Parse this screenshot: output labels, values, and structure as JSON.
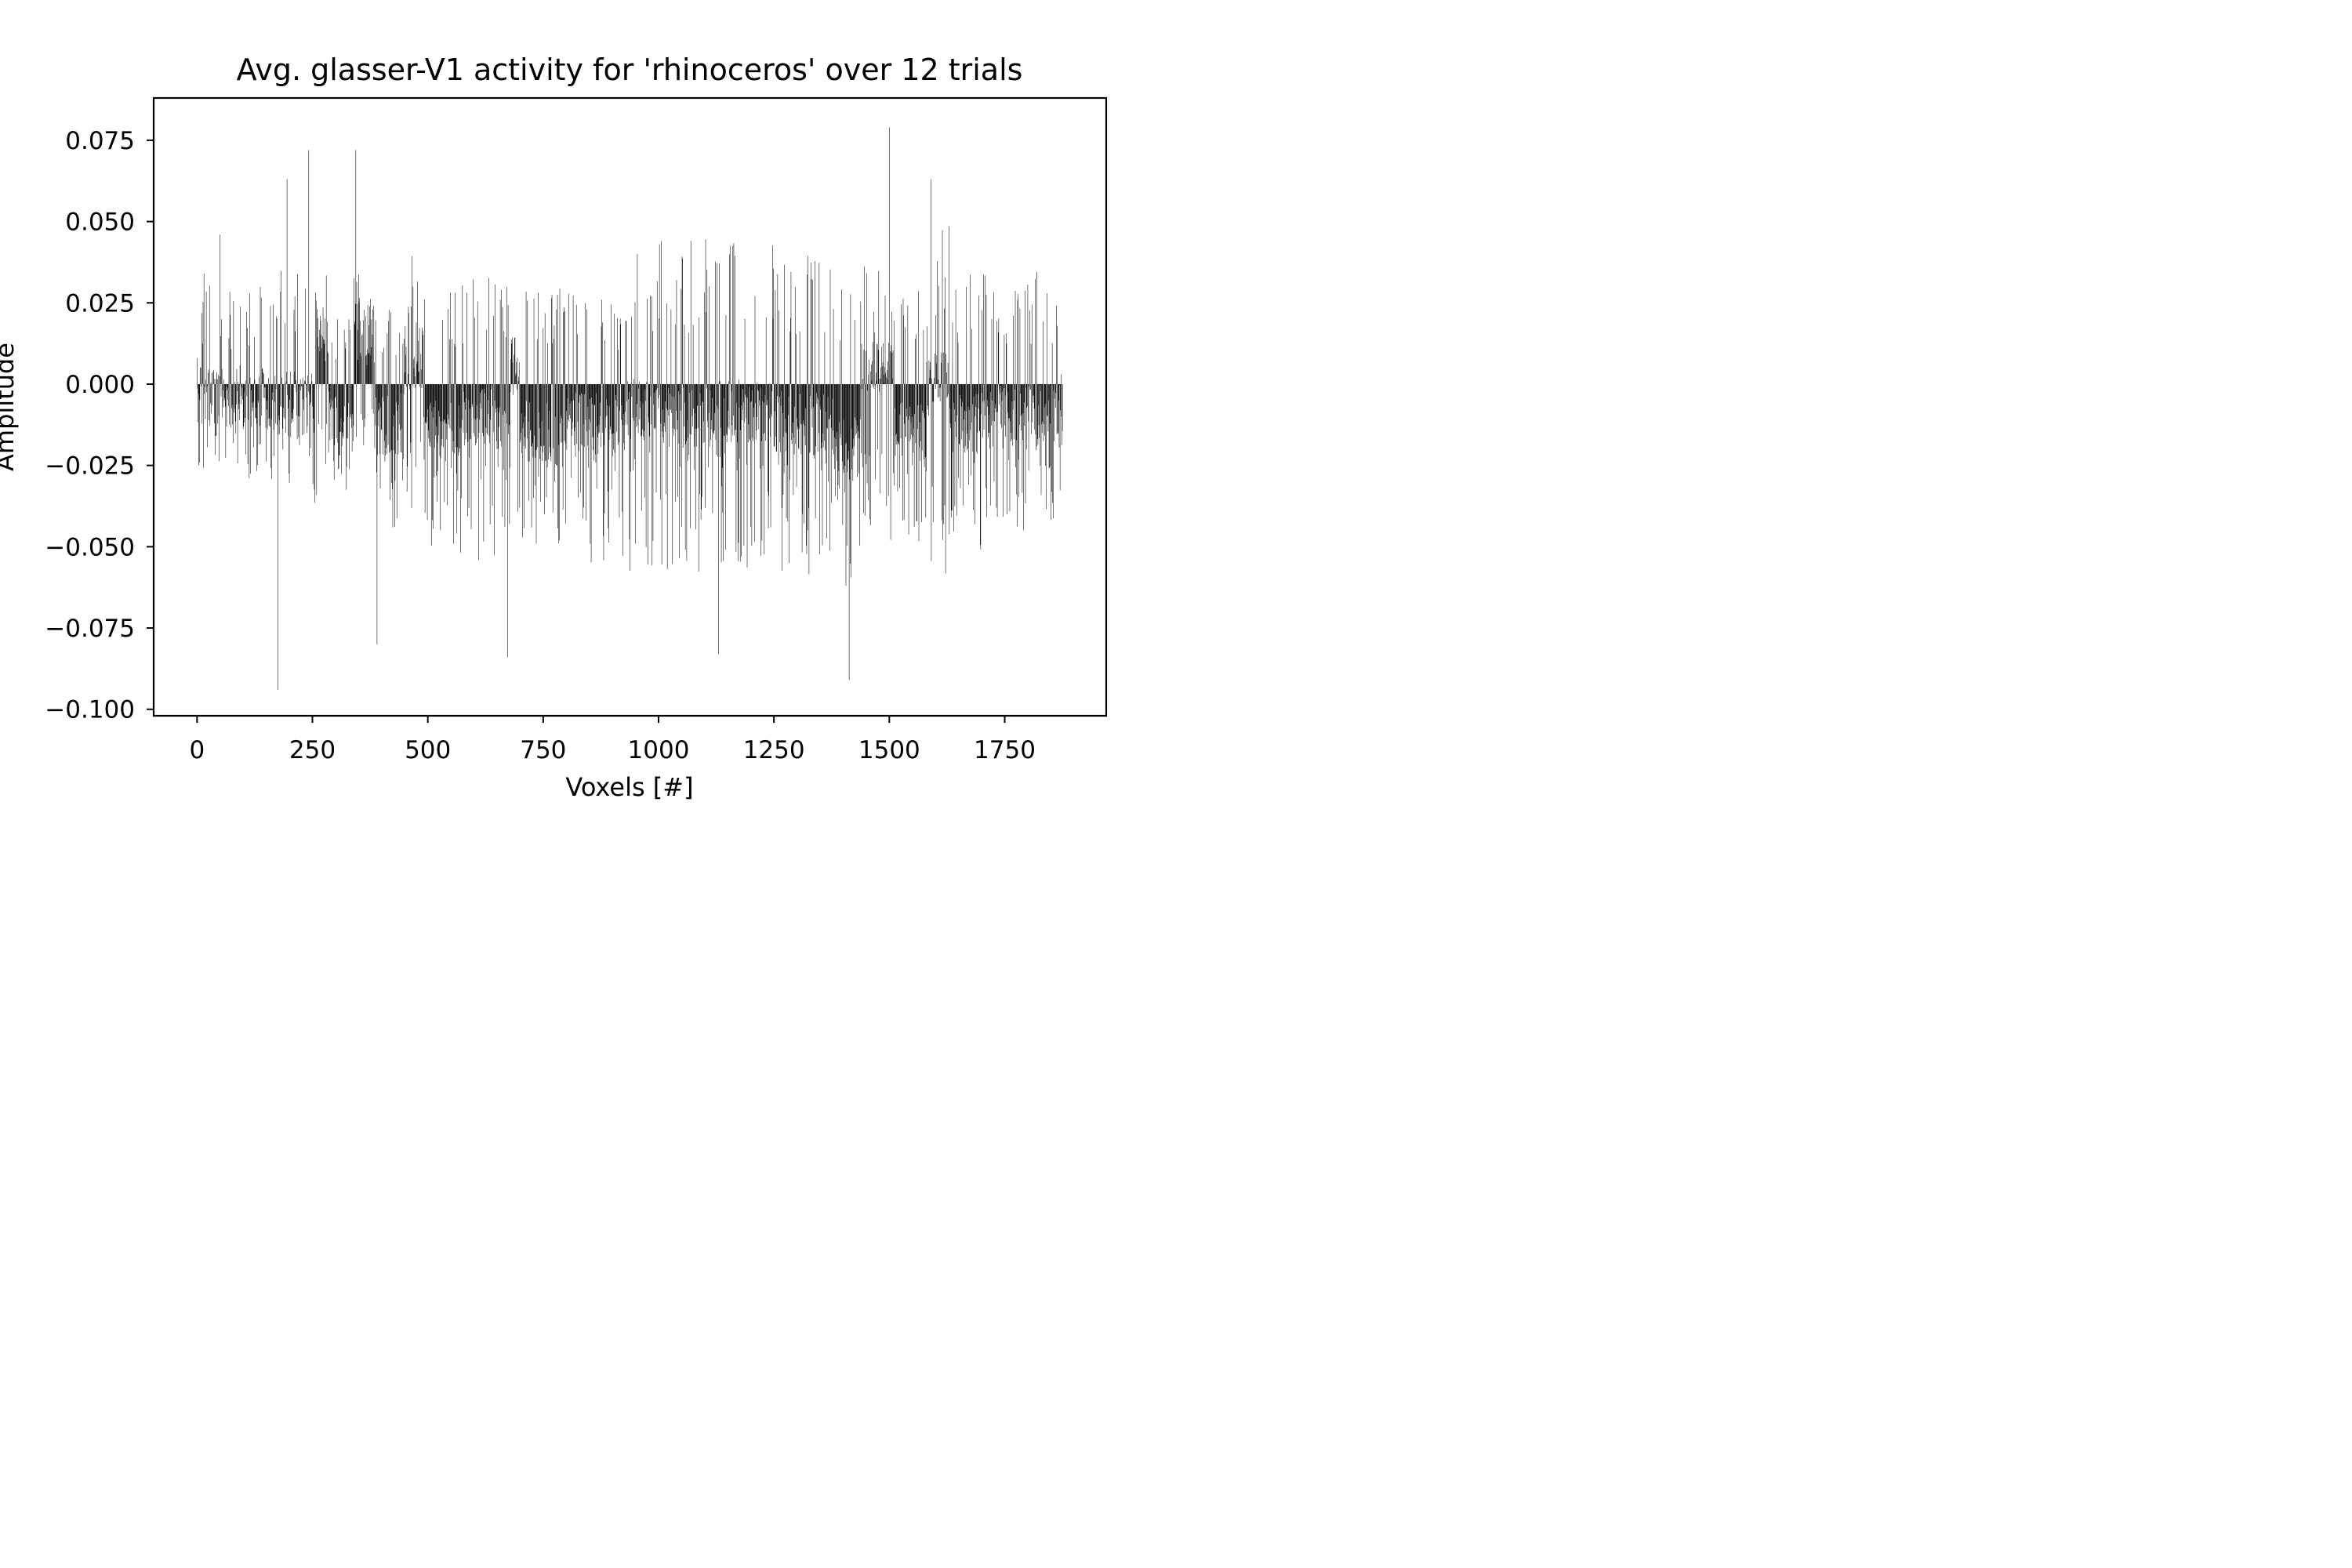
{
  "chart_data": {
    "type": "bar",
    "title": "Avg. glasser-V1 activity for 'rhinoceros' over 12 trials",
    "xlabel": "Voxels [#]",
    "ylabel": "Amplitude",
    "n_points": 1876,
    "xlim": [
      -94,
      1970
    ],
    "ylim": [
      -0.102,
      0.088
    ],
    "x_ticks": [
      0,
      250,
      500,
      750,
      1000,
      1250,
      1500,
      1750
    ],
    "x_tick_labels": [
      "0",
      "250",
      "500",
      "750",
      "1000",
      "1250",
      "1500",
      "1750"
    ],
    "y_ticks": [
      0.075,
      0.05,
      0.025,
      0.0,
      -0.025,
      -0.05,
      -0.075,
      -0.1
    ],
    "y_tick_labels": [
      "0.075",
      "0.050",
      "0.025",
      "0.000",
      "−0.025",
      "−0.050",
      "−0.075",
      "−0.100"
    ],
    "grid": false,
    "bar_color": "#000000",
    "notable_values": [
      {
        "x": 0,
        "y": 0.008
      },
      {
        "x": 50,
        "y": 0.046
      },
      {
        "x": 175,
        "y": -0.094
      },
      {
        "x": 195,
        "y": 0.063
      },
      {
        "x": 242,
        "y": 0.072
      },
      {
        "x": 344,
        "y": 0.072
      },
      {
        "x": 390,
        "y": -0.08
      },
      {
        "x": 673,
        "y": -0.084
      },
      {
        "x": 1130,
        "y": -0.083
      },
      {
        "x": 1413,
        "y": -0.091
      },
      {
        "x": 1500,
        "y": 0.079
      },
      {
        "x": 1590,
        "y": 0.063
      },
      {
        "x": 1872,
        "y": 0.003
      }
    ],
    "segments": [
      {
        "x": [
          0,
          60
        ],
        "mean": -0.004,
        "pos": 0.035,
        "neg": 0.03
      },
      {
        "x": [
          60,
          170
        ],
        "mean": -0.004,
        "pos": 0.03,
        "neg": 0.03
      },
      {
        "x": [
          170,
          260
        ],
        "mean": -0.006,
        "pos": 0.035,
        "neg": 0.04
      },
      {
        "x": [
          260,
          285
        ],
        "mean": 0.012,
        "pos": 0.035,
        "neg": 0.03
      },
      {
        "x": [
          285,
          340
        ],
        "mean": -0.012,
        "pos": 0.02,
        "neg": 0.035
      },
      {
        "x": [
          340,
          385
        ],
        "mean": 0.015,
        "pos": 0.04,
        "neg": 0.02
      },
      {
        "x": [
          385,
          450
        ],
        "mean": -0.012,
        "pos": 0.025,
        "neg": 0.045
      },
      {
        "x": [
          450,
          490
        ],
        "mean": 0.008,
        "pos": 0.045,
        "neg": 0.04
      },
      {
        "x": [
          490,
          570
        ],
        "mean": -0.014,
        "pos": 0.03,
        "neg": 0.05
      },
      {
        "x": [
          570,
          680
        ],
        "mean": -0.01,
        "pos": 0.035,
        "neg": 0.055
      },
      {
        "x": [
          680,
          700
        ],
        "mean": 0.005,
        "pos": 0.035,
        "neg": 0.04
      },
      {
        "x": [
          700,
          800
        ],
        "mean": -0.014,
        "pos": 0.03,
        "neg": 0.05
      },
      {
        "x": [
          800,
          930
        ],
        "mean": -0.012,
        "pos": 0.03,
        "neg": 0.055
      },
      {
        "x": [
          930,
          1010
        ],
        "mean": -0.008,
        "pos": 0.045,
        "neg": 0.06
      },
      {
        "x": [
          1010,
          1130
        ],
        "mean": -0.01,
        "pos": 0.045,
        "neg": 0.06
      },
      {
        "x": [
          1130,
          1250
        ],
        "mean": -0.008,
        "pos": 0.045,
        "neg": 0.06
      },
      {
        "x": [
          1250,
          1380
        ],
        "mean": -0.012,
        "pos": 0.04,
        "neg": 0.06
      },
      {
        "x": [
          1380,
          1440
        ],
        "mean": -0.02,
        "pos": 0.03,
        "neg": 0.07
      },
      {
        "x": [
          1440,
          1510
        ],
        "mean": 0.006,
        "pos": 0.05,
        "neg": 0.05
      },
      {
        "x": [
          1510,
          1580
        ],
        "mean": -0.015,
        "pos": 0.035,
        "neg": 0.05
      },
      {
        "x": [
          1580,
          1630
        ],
        "mean": 0.0,
        "pos": 0.05,
        "neg": 0.06
      },
      {
        "x": [
          1630,
          1720
        ],
        "mean": -0.012,
        "pos": 0.035,
        "neg": 0.055
      },
      {
        "x": [
          1720,
          1876
        ],
        "mean": -0.01,
        "pos": 0.035,
        "neg": 0.045
      }
    ]
  }
}
